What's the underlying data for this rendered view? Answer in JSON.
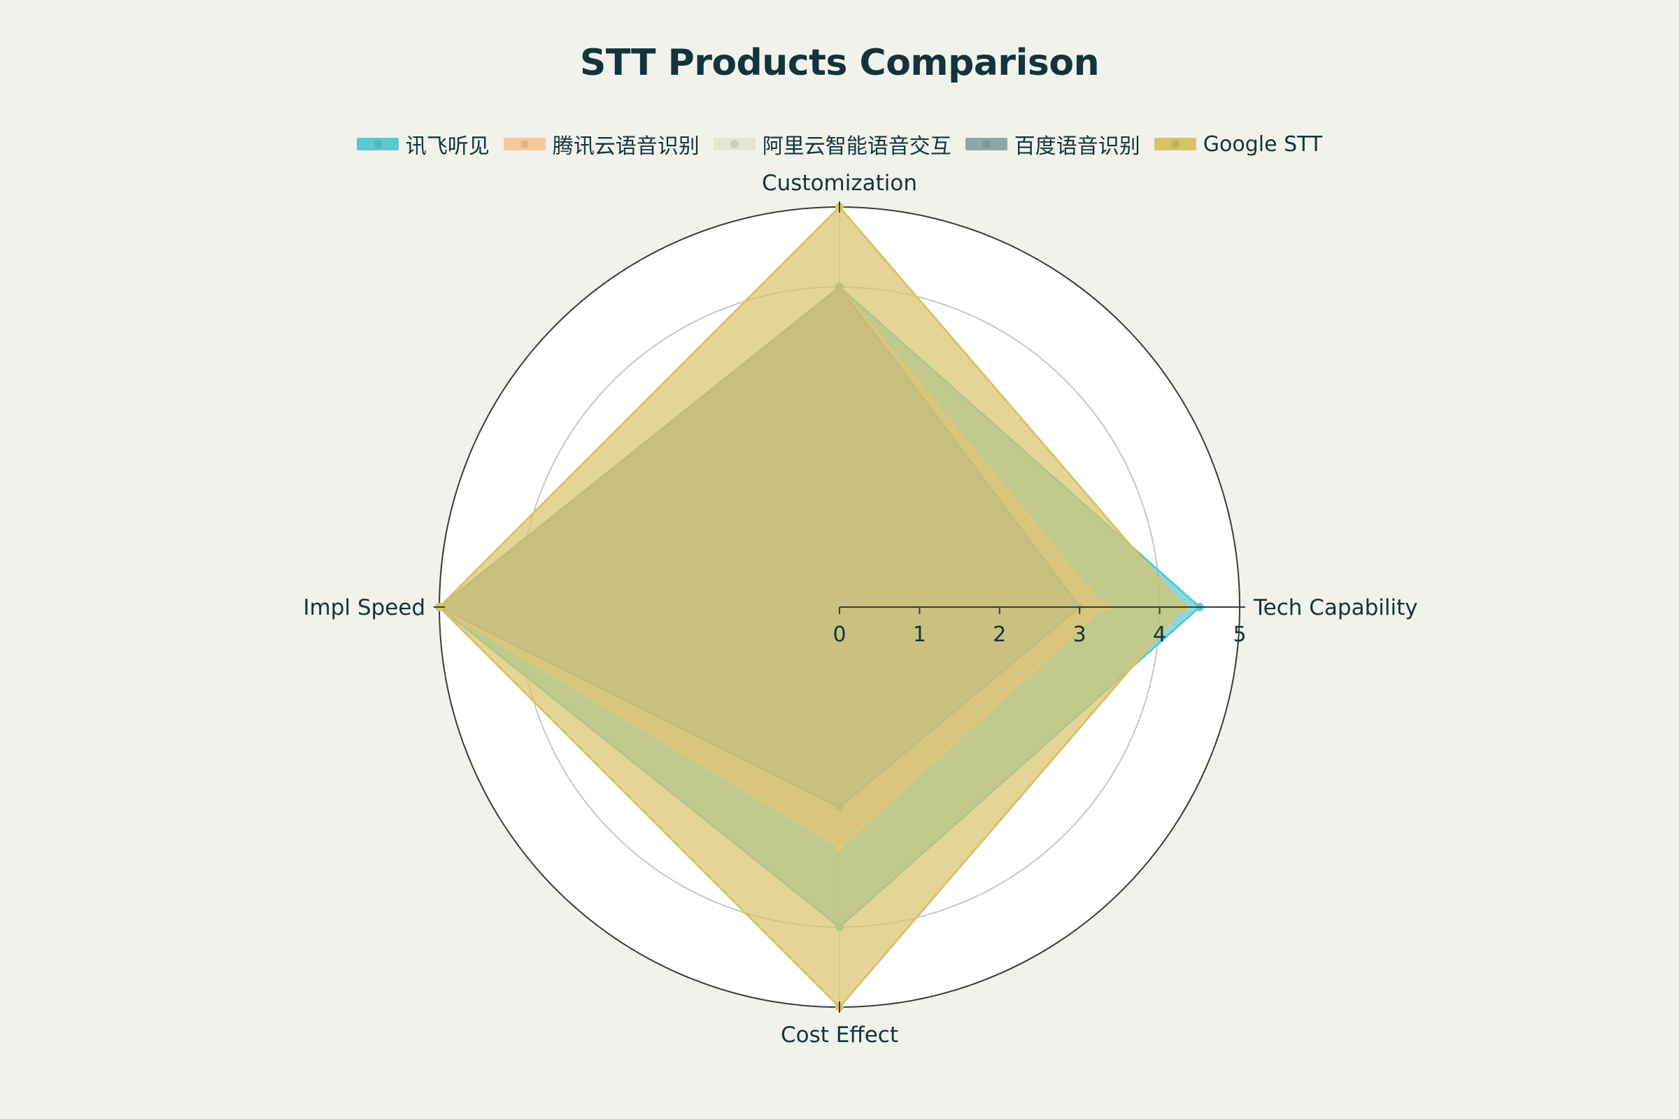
{
  "chart_data": {
    "type": "radar",
    "title": "STT Products Comparison",
    "axes": [
      "Tech Capability",
      "Customization",
      "Impl Speed",
      "Cost Effect"
    ],
    "radial_range": [
      0,
      5
    ],
    "radial_ticks": [
      "0",
      "1",
      "2",
      "3",
      "4",
      "5"
    ],
    "legend_position": "top",
    "series": [
      {
        "name": "讯飞听见",
        "color": "#5cc8d0",
        "values": [
          4.5,
          4,
          5,
          4
        ]
      },
      {
        "name": "腾讯云语音识别",
        "color": "#f6c99b",
        "values": [
          3.3,
          4,
          5,
          3
        ]
      },
      {
        "name": "阿里云智能语音交互",
        "color": "#e6e6d6",
        "values": [
          3.0,
          3,
          5,
          2.5
        ]
      },
      {
        "name": "百度语音识别",
        "color": "#8ea8a8",
        "values": [
          3.0,
          4,
          5,
          2.5
        ]
      },
      {
        "name": "Google STT",
        "color": "#d8c369",
        "values": [
          4.3,
          5,
          5,
          5
        ]
      }
    ]
  }
}
